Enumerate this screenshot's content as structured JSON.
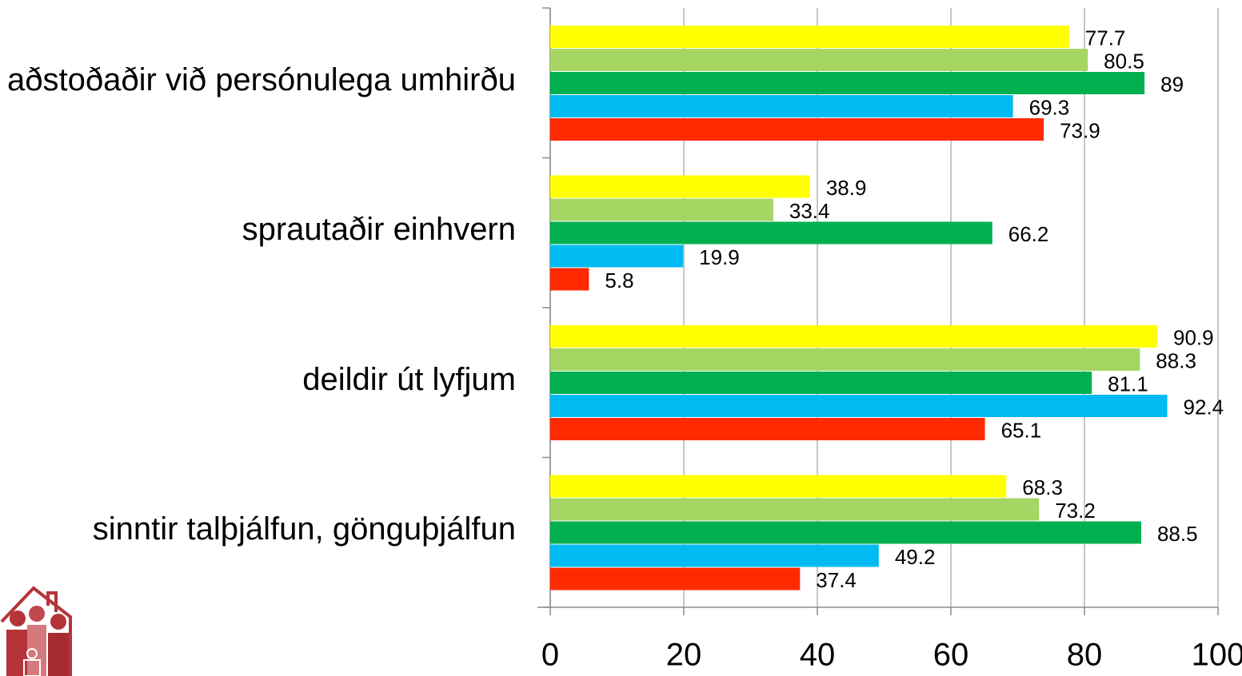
{
  "chart_data": {
    "type": "bar",
    "orientation": "horizontal",
    "categories": [
      "aðstoðaðir við persónulega umhirðu",
      "sprautaðir einhvern",
      "deildir út lyfjum",
      "sinntir talþjálfun, gönguþjálfun"
    ],
    "series": [
      {
        "color": "#ffff00",
        "values": [
          77.7,
          38.9,
          90.9,
          68.3
        ]
      },
      {
        "color": "#a5d664",
        "values": [
          80.5,
          33.4,
          88.3,
          73.2
        ]
      },
      {
        "color": "#00b050",
        "values": [
          89,
          66.2,
          81.1,
          88.5
        ]
      },
      {
        "color": "#00bbf2",
        "values": [
          69.3,
          19.9,
          92.4,
          49.2
        ]
      },
      {
        "color": "#ff2a00",
        "values": [
          73.9,
          5.8,
          65.1,
          37.4
        ]
      }
    ],
    "xlim": [
      0,
      100
    ],
    "xticks": [
      0,
      20,
      40,
      60,
      80,
      100
    ],
    "grid": true
  }
}
